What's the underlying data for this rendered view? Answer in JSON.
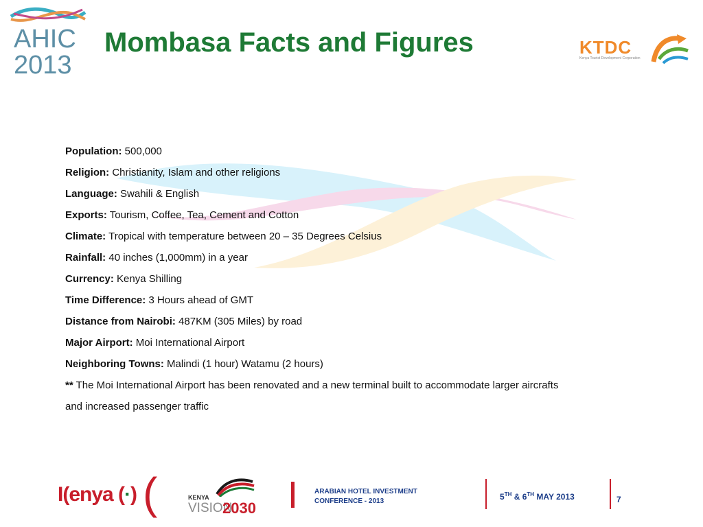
{
  "header": {
    "title": "Mombasa Facts and Figures",
    "ahic_word": "AHIC",
    "ahic_year": "2013",
    "ktdc_word": "KTDC",
    "ktdc_tagline": "Kenya Tourist Development Corporation"
  },
  "facts": [
    {
      "label": "Population:",
      "value": "500,000"
    },
    {
      "label": "Religion:",
      "value": "Christianity, Islam and other religions"
    },
    {
      "label": "Language:",
      "value": "Swahili & English"
    },
    {
      "label": "Exports:",
      "value": "Tourism, Coffee, Tea, Cement and Cotton"
    },
    {
      "label": "Climate:",
      "value": "Tropical with temperature between 20 – 35 Degrees Celsius"
    },
    {
      "label": "Rainfall:",
      "value": "40 inches (1,000mm) in a year"
    },
    {
      "label": "Currency:",
      "value": "Kenya Shilling"
    },
    {
      "label": "Time Difference:",
      "value": "3 Hours ahead of GMT"
    },
    {
      "label": "Distance from Nairobi:",
      "value": "487KM (305 Miles) by road"
    },
    {
      "label": "Major Airport:",
      "value": "Moi International Airport"
    },
    {
      "label": "Neighboring Towns:",
      "value": "Malindi (1 hour) Watamu (2 hours)"
    }
  ],
  "note": {
    "marker": "**",
    "line1": "The Moi International Airport has been renovated and a new terminal built to accommodate larger aircrafts",
    "line2": "and increased passenger traffic"
  },
  "footer": {
    "kenya_prefix": "I(enya (",
    "kenya_dot": "·",
    "kenya_suffix": ")",
    "paren": "(",
    "vision_kenya": "KENYA",
    "vision_word": "VISION",
    "vision_year": "2030",
    "conference_line1": "ARABIAN HOTEL INVESTMENT",
    "conference_line2": "CONFERENCE - 2013",
    "date_part1": "5",
    "date_sup1": "TH",
    "date_part2": " & 6",
    "date_sup2": "TH",
    "date_part3": " MAY 2013",
    "page_number": "7"
  },
  "colors": {
    "title_green": "#1e7a35",
    "ahic_blue": "#5d8fa6",
    "ktdc_orange": "#f08a2a",
    "footer_red": "#c81e2b",
    "footer_blue": "#1e3f8a"
  }
}
